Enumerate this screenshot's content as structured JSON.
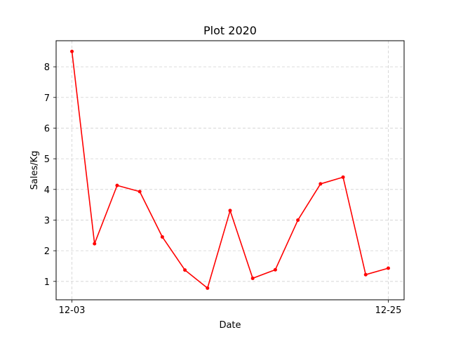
{
  "chart_data": {
    "type": "line",
    "title": "Plot 2020",
    "xlabel": "Date",
    "ylabel": "Sales/Kg",
    "grid": true,
    "x_tick_labels": [
      {
        "index": 0,
        "label": "12-03"
      },
      {
        "index": 14,
        "label": "12-25"
      }
    ],
    "y_ticks": [
      1,
      2,
      3,
      4,
      5,
      6,
      7,
      8
    ],
    "xlim": [
      -0.7,
      14.7
    ],
    "ylim": [
      0.4,
      8.85
    ],
    "series": [
      {
        "name": "Sales",
        "color": "#ff0000",
        "values": [
          8.5,
          2.23,
          4.13,
          3.93,
          2.45,
          1.37,
          0.78,
          3.31,
          1.1,
          1.38,
          3.0,
          4.18,
          4.4,
          1.22,
          1.43
        ]
      }
    ]
  }
}
